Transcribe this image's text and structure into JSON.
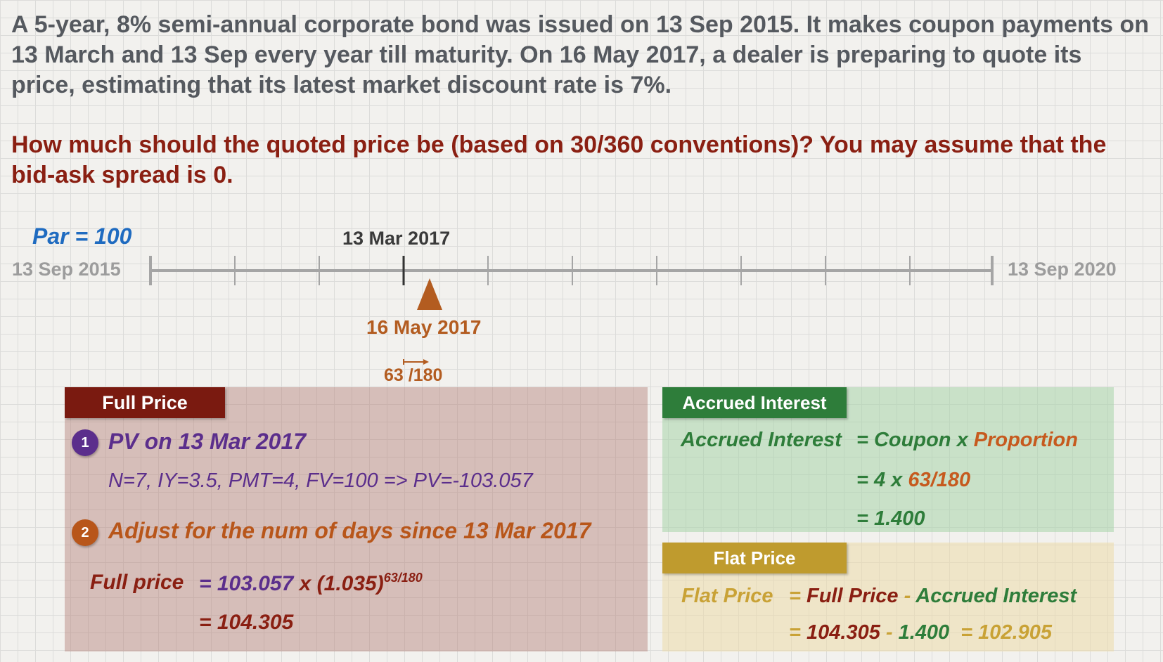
{
  "problem_text": "A 5-year, 8% semi-annual corporate bond was issued on 13 Sep 2015.  It makes coupon payments on 13 March and 13 Sep every year till maturity.  On 16 May 2017, a dealer is preparing to quote its price, estimating that its latest market discount rate is 7%.",
  "question_text": "How much should the quoted price be (based on 30/360 conventions)? You may assume that the bid-ask spread is 0.",
  "timeline": {
    "par_label": "Par = 100",
    "start_date": "13 Sep 2015",
    "end_date": "13 Sep 2020",
    "coupon_date": "13 Mar 2017",
    "valuation_date": "16 May 2017",
    "days_fraction": "63 /180"
  },
  "full_price": {
    "tab": "Full Price",
    "step1_num": "1",
    "step1_title": "PV on 13 Mar 2017",
    "step1_calc": "N=7, IY=3.5, PMT=4, FV=100 => PV=-103.057",
    "step2_num": "2",
    "step2_title": "Adjust for the num of days since 13 Mar 2017",
    "label": "Full price",
    "eq1_prefix": "= 103.057",
    "eq1_x": " x ",
    "eq1_paren": "(1.035)",
    "eq1_exp": "63/180",
    "eq2": "= 104.305"
  },
  "accrued_interest": {
    "tab": "Accrued Interest",
    "label": "Accrued Interest",
    "eq1_a": "= Coupon x ",
    "eq1_b": "Proportion",
    "eq2_a": "= 4 x ",
    "eq2_b": "63/180",
    "eq3": "= 1.400"
  },
  "flat_price": {
    "tab": "Flat Price",
    "label": "Flat Price",
    "eq1_eq": "= ",
    "eq1_full": "Full Price",
    "eq1_minus": " - ",
    "eq1_ai": "Accrued Interest",
    "eq2_eq": "= ",
    "eq2_full": "104.305",
    "eq2_minus": " - ",
    "eq2_ai": "1.400",
    "eq2_result": "= 102.905"
  },
  "colors": {
    "full_price": "#7a1a10",
    "accrued_interest": "#2e7d3a",
    "flat_price": "#bf9b2e",
    "valuation_marker": "#b35c20",
    "par": "#1f6bc0"
  }
}
